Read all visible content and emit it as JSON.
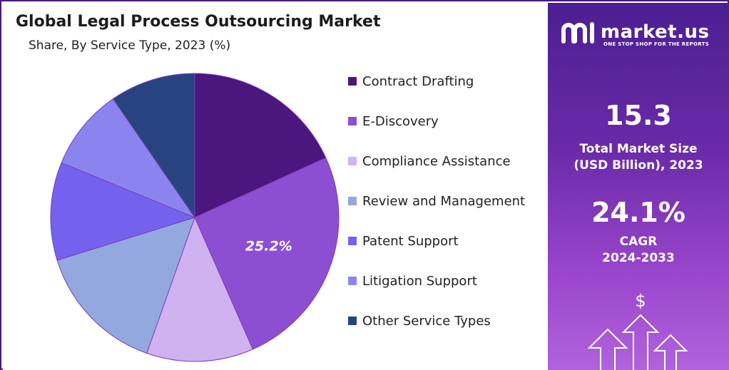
{
  "chart_data": {
    "type": "pie",
    "title": "Global Legal Process Outsourcing Market",
    "subtitle": "Share, By Service Type, 2023 (%)",
    "slices": [
      {
        "label": "Contract Drafting",
        "value": 18.2,
        "color": "#4b167d"
      },
      {
        "label": "E-Discovery",
        "value": 25.2,
        "color": "#8c4fd1",
        "data_label": "25.2%"
      },
      {
        "label": "Compliance Assistance",
        "value": 12.0,
        "color": "#d1b2f0"
      },
      {
        "label": "Review and Management",
        "value": 14.8,
        "color": "#94a8e0"
      },
      {
        "label": "Patent Support",
        "value": 11.0,
        "color": "#7462ee"
      },
      {
        "label": "Litigation Support",
        "value": 9.2,
        "color": "#8b84ef"
      },
      {
        "label": "Other Service Types",
        "value": 9.6,
        "color": "#284480"
      }
    ],
    "start_angle_deg": 0,
    "legend_position": "right"
  },
  "brand": {
    "name": "market.us",
    "tagline": "ONE STOP SHOP FOR THE REPORTS"
  },
  "stats": {
    "market_size_value": "15.3",
    "market_size_label_1": "Total Market Size",
    "market_size_label_2": "(USD Billion), 2023",
    "cagr_value": "24.1%",
    "cagr_label": "CAGR",
    "cagr_period": "2024-2033"
  },
  "decor": {
    "dollar_sign": "$"
  }
}
